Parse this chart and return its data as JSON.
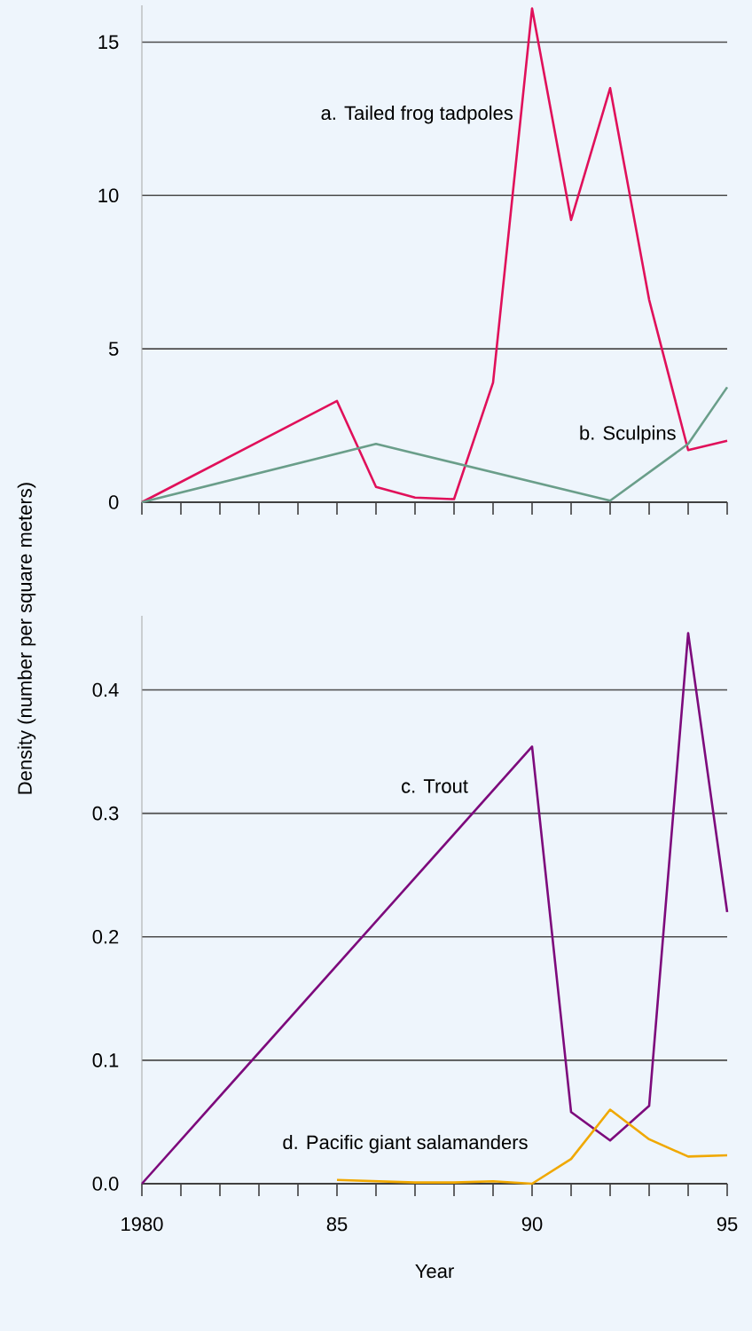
{
  "chart_data": [
    {
      "type": "line",
      "x": [
        1980,
        1985,
        1986,
        1987,
        1988,
        1989,
        1990,
        1991,
        1992,
        1993,
        1994,
        1995
      ],
      "xlim": [
        1980,
        1995
      ],
      "ylim": [
        0,
        16.2
      ],
      "yticks": [
        0,
        5,
        10,
        15
      ],
      "grid": "y",
      "tick_labels": "y",
      "xticks": [
        {
          "value": 1980,
          "label": null
        },
        {
          "value": 1981,
          "label": null
        },
        {
          "value": 1982,
          "label": null
        },
        {
          "value": 1983,
          "label": null
        },
        {
          "value": 1984,
          "label": null
        },
        {
          "value": 1985,
          "label": null
        },
        {
          "value": 1986,
          "label": null
        },
        {
          "value": 1987,
          "label": null
        },
        {
          "value": 1988,
          "label": null
        },
        {
          "value": 1989,
          "label": null
        },
        {
          "value": 1990,
          "label": null
        },
        {
          "value": 1991,
          "label": null
        },
        {
          "value": 1992,
          "label": null
        },
        {
          "value": 1993,
          "label": null
        },
        {
          "value": 1994,
          "label": null
        },
        {
          "value": 1995,
          "label": null
        }
      ],
      "series": [
        {
          "name": "a. Tailed frog tadpoles",
          "color": "#e0105a",
          "values": [
            0,
            3.3,
            0.5,
            0.15,
            0.1,
            3.9,
            16.1,
            9.2,
            13.5,
            6.6,
            1.7,
            2.0
          ]
        },
        {
          "name": "b. Sculpins",
          "color": "#6a9e8a",
          "x": [
            1980,
            1986,
            1992,
            1994,
            1995
          ],
          "values": [
            0,
            1.9,
            0.05,
            1.9,
            3.75
          ]
        }
      ]
    },
    {
      "type": "line",
      "x": [
        1980,
        1990,
        1991,
        1992,
        1993,
        1994,
        1995
      ],
      "xlim": [
        1980,
        1995
      ],
      "ylim": [
        0,
        0.46
      ],
      "yticks": [
        {
          "value": 0,
          "label": "0.0"
        },
        0.1,
        0.2,
        0.3,
        0.4
      ],
      "grid": "y",
      "xlabel": "Year",
      "ylabel": "Density (number per square meters)",
      "xticks": [
        1980,
        {
          "value": 1981,
          "label": null
        },
        {
          "value": 1982,
          "label": null
        },
        {
          "value": 1983,
          "label": null
        },
        {
          "value": 1984,
          "label": null
        },
        {
          "value": 1985,
          "label": "85"
        },
        {
          "value": 1986,
          "label": null
        },
        {
          "value": 1987,
          "label": null
        },
        {
          "value": 1988,
          "label": null
        },
        {
          "value": 1989,
          "label": null
        },
        {
          "value": 1990,
          "label": "90"
        },
        {
          "value": 1991,
          "label": null
        },
        {
          "value": 1992,
          "label": null
        },
        {
          "value": 1993,
          "label": null
        },
        {
          "value": 1994,
          "label": null
        },
        {
          "value": 1995,
          "label": "95"
        }
      ],
      "series": [
        {
          "name": "c. Trout",
          "color": "#7d0a7c",
          "values": [
            0,
            0.354,
            0.058,
            0.035,
            0.063,
            0.446,
            0.22
          ]
        },
        {
          "name": "d. Pacific giant  salamanders",
          "color": "#f0a800",
          "x": [
            1985,
            1986,
            1987,
            1988,
            1989,
            1990,
            1991,
            1992,
            1993,
            1994,
            1995
          ],
          "values": [
            0.003,
            0.002,
            0.001,
            0.001,
            0.002,
            0.0,
            0.02,
            0.06,
            0.036,
            0.022,
            0.023
          ]
        }
      ]
    }
  ]
}
